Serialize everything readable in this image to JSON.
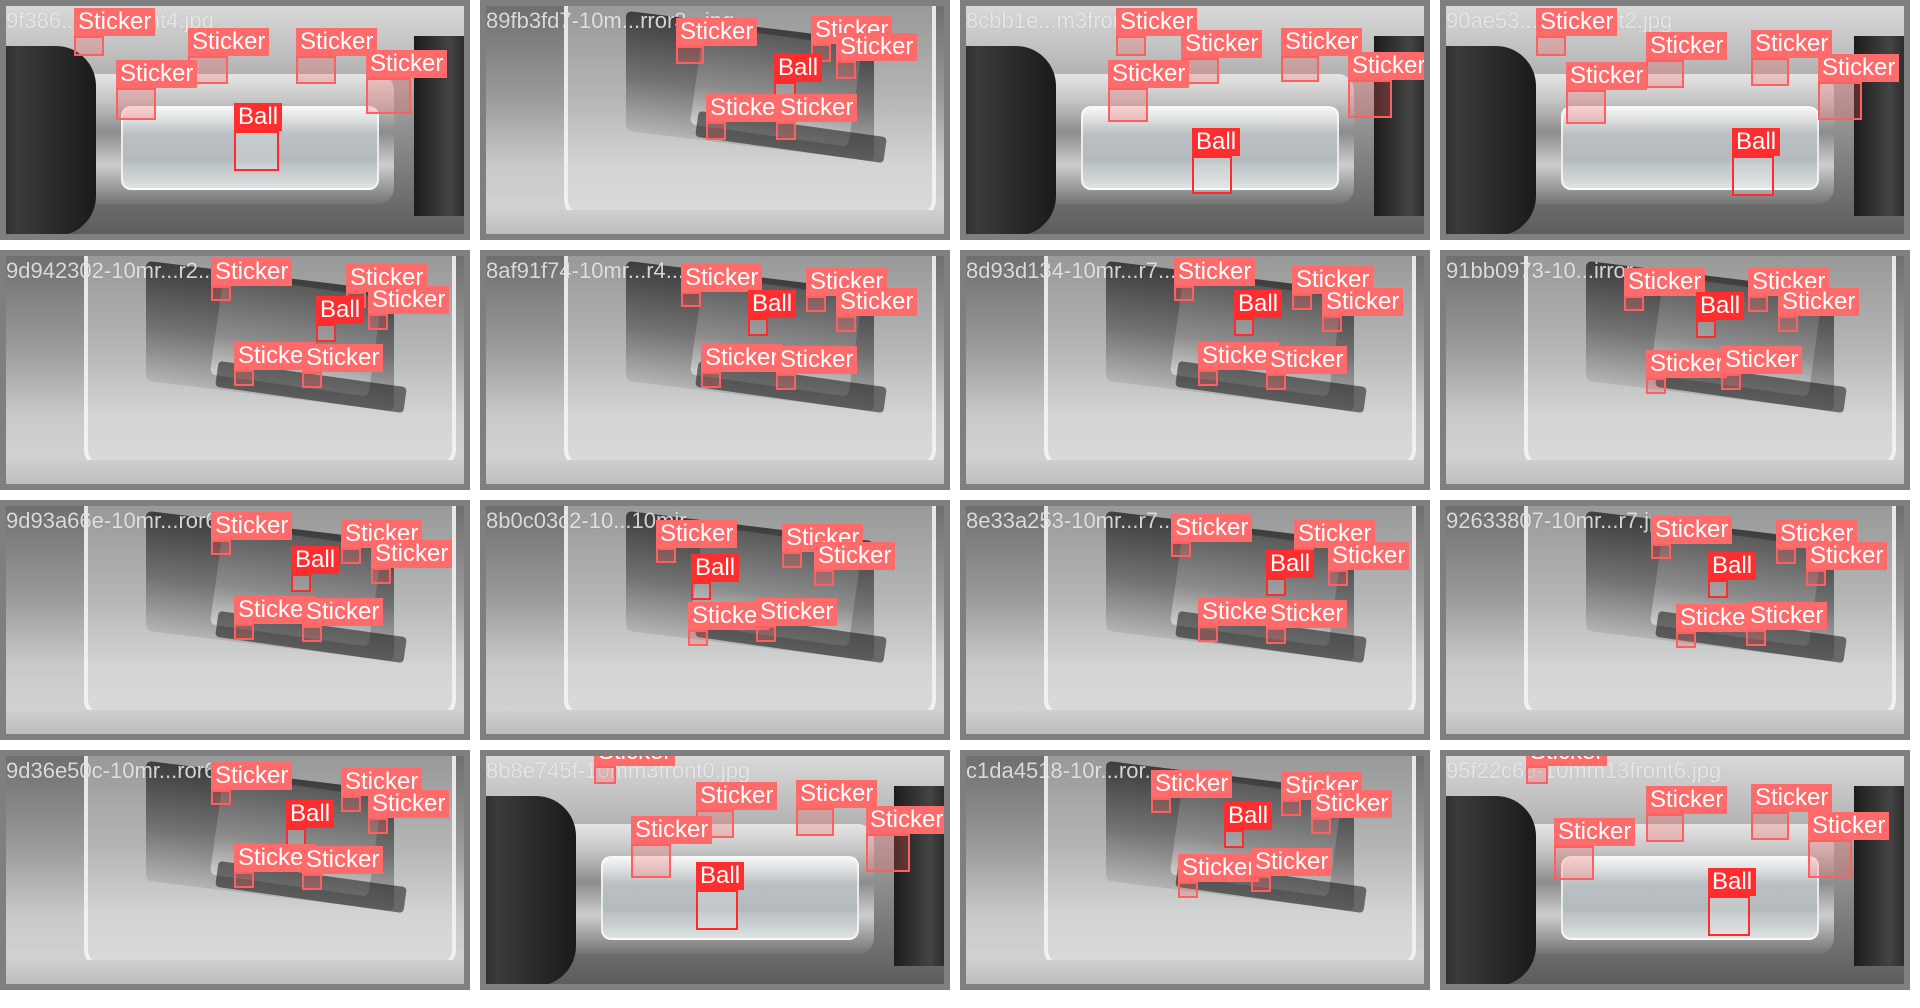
{
  "colors": {
    "sticker_label": "#ff6a6a",
    "ball_label": "#ff2d2d",
    "tile_border": "#7f7f7f"
  },
  "tiles": [
    {
      "filename": "9f386..mm1front4.jpg",
      "labels": [
        "Sticker",
        "Sticker",
        "Sticker",
        "Sticker",
        "Sticker",
        "Ball"
      ]
    },
    {
      "filename": "89fb3fd7-10m...rror3...jpg",
      "labels": [
        "Sticker",
        "Sticker",
        "Sticker",
        "Ball",
        "Sticker",
        "Sticker"
      ]
    },
    {
      "filename": "8cbb1e...m3front7.jpg",
      "labels": [
        "Sticker",
        "Sticker",
        "Sticker",
        "Sticker",
        "Sticker",
        "Ball"
      ]
    },
    {
      "filename": "90ae53...nm4front2.jpg",
      "labels": [
        "Sticker",
        "Sticker",
        "Sticker",
        "Sticker",
        "Sticker",
        "Ball"
      ]
    },
    {
      "filename": "9d942302-10mr...r2...",
      "labels": [
        "Sticker",
        "Sticker",
        "Sticker",
        "Ball",
        "Sticker",
        "Sticker"
      ]
    },
    {
      "filename": "8af91f74-10mr...r4...",
      "labels": [
        "Sticker",
        "Sticker",
        "Sticker",
        "Ball",
        "Sticker",
        "Sticker"
      ]
    },
    {
      "filename": "8d93d134-10mr...r7...",
      "labels": [
        "Sticker",
        "Sticker",
        "Sticker",
        "Ball",
        "Sticker",
        "Sticker"
      ]
    },
    {
      "filename": "91bb0973-10...irror...",
      "labels": [
        "Sticker",
        "Sticker",
        "Sticker",
        "Ball",
        "Sticker",
        "Sticker"
      ]
    },
    {
      "filename": "9d93a66e-10mr...ror6...",
      "labels": [
        "Sticker",
        "Sticker",
        "Sticker",
        "Ball",
        "Sticker",
        "Sticker"
      ]
    },
    {
      "filename": "8b0c03c2-10...10mir...",
      "labels": [
        "Sticker",
        "Sticker",
        "Sticker",
        "Ball",
        "Sticker",
        "Sticker"
      ]
    },
    {
      "filename": "8e33a253-10mr...r7...",
      "labels": [
        "Sticker",
        "Sticker",
        "Sticker",
        "Ball",
        "Sticker",
        "Sticker"
      ]
    },
    {
      "filename": "92633807-10mr...r7.jpg",
      "labels": [
        "Sticker",
        "Sticker",
        "Sticker",
        "Ball",
        "Sticker",
        "Sticker"
      ]
    },
    {
      "filename": "9d36e50c-10mr...ror6...",
      "labels": [
        "Sticker",
        "Sticker",
        "Sticker",
        "Ball",
        "Sticker",
        "Sticker"
      ]
    },
    {
      "filename": "8b8e745f-10mm3front0.jpg",
      "labels": [
        "Sticker",
        "Sticker",
        "Sticker",
        "Sticker",
        "Sticker",
        "Ball"
      ]
    },
    {
      "filename": "c1da4518-10r...ror...",
      "labels": [
        "Sticker",
        "Sticker",
        "Sticker",
        "Ball",
        "Sticker",
        "Sticker"
      ]
    },
    {
      "filename": "95f22c69-10mm13front6.jpg",
      "labels": [
        "Sticker",
        "Sticker",
        "Sticker",
        "Sticker",
        "Sticker",
        "Ball"
      ]
    }
  ]
}
